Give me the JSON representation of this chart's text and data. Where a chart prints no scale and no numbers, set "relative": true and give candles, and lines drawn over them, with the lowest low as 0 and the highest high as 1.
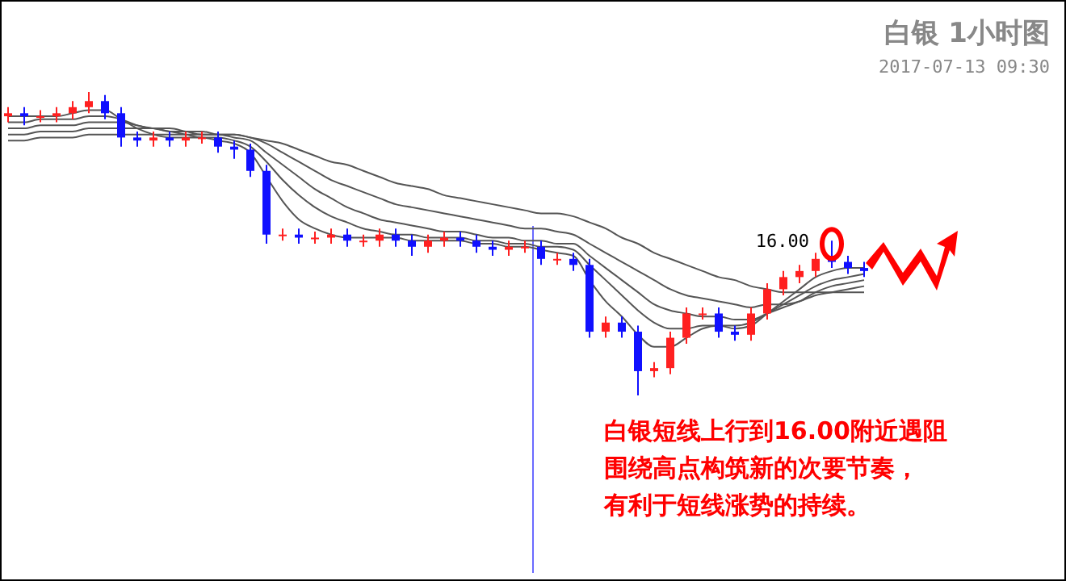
{
  "chart_data": {
    "type": "candlestick",
    "title": "白银 1小时图",
    "subtitle": "2017-07-13 09:30",
    "relative": true,
    "categories": [
      null,
      null,
      null,
      null,
      null,
      null,
      null,
      null,
      null,
      null,
      null,
      null,
      null,
      null,
      null,
      null,
      null,
      null,
      null,
      null,
      null,
      null,
      null,
      null,
      null,
      null,
      null,
      null,
      null,
      null,
      null,
      null,
      null,
      null,
      null,
      null,
      null,
      null,
      null,
      null,
      null,
      null,
      null,
      null,
      null,
      null,
      null,
      null,
      null,
      null,
      null,
      null,
      null,
      null
    ],
    "ohlc": [
      [
        0.92,
        0.95,
        0.9,
        0.93
      ],
      [
        0.93,
        0.95,
        0.89,
        0.92
      ],
      [
        0.92,
        0.94,
        0.9,
        0.92
      ],
      [
        0.92,
        0.95,
        0.9,
        0.93
      ],
      [
        0.93,
        0.97,
        0.91,
        0.95
      ],
      [
        0.95,
        1.0,
        0.93,
        0.97
      ],
      [
        0.97,
        0.99,
        0.91,
        0.93
      ],
      [
        0.93,
        0.95,
        0.82,
        0.85
      ],
      [
        0.85,
        0.87,
        0.82,
        0.84
      ],
      [
        0.84,
        0.87,
        0.82,
        0.85
      ],
      [
        0.85,
        0.87,
        0.82,
        0.84
      ],
      [
        0.84,
        0.87,
        0.82,
        0.85
      ],
      [
        0.85,
        0.87,
        0.83,
        0.85
      ],
      [
        0.85,
        0.87,
        0.8,
        0.82
      ],
      [
        0.82,
        0.84,
        0.78,
        0.81
      ],
      [
        0.81,
        0.83,
        0.72,
        0.74
      ],
      [
        0.74,
        0.76,
        0.5,
        0.53
      ],
      [
        0.53,
        0.55,
        0.51,
        0.53
      ],
      [
        0.53,
        0.55,
        0.5,
        0.52
      ],
      [
        0.52,
        0.54,
        0.5,
        0.52
      ],
      [
        0.52,
        0.55,
        0.5,
        0.53
      ],
      [
        0.53,
        0.55,
        0.49,
        0.51
      ],
      [
        0.51,
        0.53,
        0.49,
        0.51
      ],
      [
        0.51,
        0.55,
        0.49,
        0.53
      ],
      [
        0.53,
        0.55,
        0.49,
        0.51
      ],
      [
        0.51,
        0.53,
        0.46,
        0.49
      ],
      [
        0.49,
        0.53,
        0.47,
        0.51
      ],
      [
        0.51,
        0.54,
        0.49,
        0.52
      ],
      [
        0.52,
        0.54,
        0.49,
        0.51
      ],
      [
        0.51,
        0.53,
        0.47,
        0.49
      ],
      [
        0.49,
        0.51,
        0.46,
        0.48
      ],
      [
        0.48,
        0.51,
        0.46,
        0.49
      ],
      [
        0.49,
        0.51,
        0.47,
        0.49
      ],
      [
        0.49,
        0.51,
        0.43,
        0.45
      ],
      [
        0.45,
        0.47,
        0.43,
        0.45
      ],
      [
        0.45,
        0.47,
        0.41,
        0.43
      ],
      [
        0.43,
        0.45,
        0.19,
        0.21
      ],
      [
        0.21,
        0.26,
        0.19,
        0.24
      ],
      [
        0.24,
        0.26,
        0.19,
        0.21
      ],
      [
        0.21,
        0.23,
        0.0,
        0.08
      ],
      [
        0.08,
        0.11,
        0.06,
        0.09
      ],
      [
        0.09,
        0.21,
        0.07,
        0.19
      ],
      [
        0.19,
        0.29,
        0.17,
        0.27
      ],
      [
        0.27,
        0.29,
        0.25,
        0.27
      ],
      [
        0.27,
        0.29,
        0.19,
        0.21
      ],
      [
        0.21,
        0.23,
        0.18,
        0.2
      ],
      [
        0.2,
        0.29,
        0.18,
        0.27
      ],
      [
        0.27,
        0.37,
        0.25,
        0.35
      ],
      [
        0.35,
        0.41,
        0.33,
        0.39
      ],
      [
        0.39,
        0.43,
        0.37,
        0.41
      ],
      [
        0.41,
        0.47,
        0.39,
        0.45
      ],
      [
        0.45,
        0.51,
        0.42,
        0.44
      ],
      [
        0.44,
        0.46,
        0.4,
        0.42
      ],
      [
        0.42,
        0.44,
        0.39,
        0.41
      ]
    ],
    "series": [
      {
        "type": "line",
        "color": "#555555",
        "values": [
          0.92,
          0.92,
          0.92,
          0.92,
          0.93,
          0.94,
          0.94,
          0.91,
          0.88,
          0.86,
          0.85,
          0.85,
          0.85,
          0.84,
          0.83,
          0.8,
          0.72,
          0.64,
          0.58,
          0.55,
          0.53,
          0.52,
          0.52,
          0.52,
          0.52,
          0.51,
          0.51,
          0.51,
          0.51,
          0.5,
          0.5,
          0.49,
          0.49,
          0.48,
          0.47,
          0.46,
          0.38,
          0.31,
          0.26,
          0.2,
          0.16,
          0.16,
          0.19,
          0.22,
          0.23,
          0.22,
          0.23,
          0.27,
          0.31,
          0.35,
          0.39,
          0.41,
          0.42,
          0.42
        ]
      },
      {
        "type": "line",
        "color": "#555555",
        "values": [
          0.9,
          0.9,
          0.91,
          0.91,
          0.91,
          0.92,
          0.92,
          0.91,
          0.89,
          0.88,
          0.87,
          0.86,
          0.85,
          0.85,
          0.84,
          0.82,
          0.77,
          0.71,
          0.66,
          0.62,
          0.59,
          0.57,
          0.55,
          0.54,
          0.53,
          0.53,
          0.52,
          0.52,
          0.52,
          0.51,
          0.51,
          0.5,
          0.5,
          0.49,
          0.49,
          0.48,
          0.43,
          0.38,
          0.33,
          0.28,
          0.24,
          0.22,
          0.22,
          0.23,
          0.23,
          0.23,
          0.24,
          0.27,
          0.3,
          0.33,
          0.36,
          0.38,
          0.39,
          0.4
        ]
      },
      {
        "type": "line",
        "color": "#555555",
        "values": [
          0.88,
          0.88,
          0.89,
          0.89,
          0.89,
          0.9,
          0.9,
          0.9,
          0.89,
          0.88,
          0.88,
          0.87,
          0.86,
          0.86,
          0.85,
          0.84,
          0.8,
          0.76,
          0.72,
          0.68,
          0.65,
          0.62,
          0.6,
          0.58,
          0.57,
          0.56,
          0.55,
          0.54,
          0.54,
          0.53,
          0.52,
          0.52,
          0.51,
          0.51,
          0.5,
          0.5,
          0.46,
          0.42,
          0.38,
          0.34,
          0.3,
          0.28,
          0.27,
          0.26,
          0.26,
          0.25,
          0.25,
          0.27,
          0.29,
          0.31,
          0.34,
          0.36,
          0.37,
          0.38
        ]
      },
      {
        "type": "line",
        "color": "#555555",
        "values": [
          0.86,
          0.86,
          0.87,
          0.87,
          0.87,
          0.88,
          0.88,
          0.88,
          0.88,
          0.88,
          0.87,
          0.87,
          0.87,
          0.86,
          0.86,
          0.85,
          0.83,
          0.8,
          0.77,
          0.74,
          0.71,
          0.69,
          0.67,
          0.65,
          0.63,
          0.62,
          0.61,
          0.6,
          0.59,
          0.58,
          0.57,
          0.56,
          0.55,
          0.55,
          0.54,
          0.53,
          0.5,
          0.47,
          0.44,
          0.41,
          0.38,
          0.35,
          0.33,
          0.32,
          0.31,
          0.3,
          0.29,
          0.3,
          0.3,
          0.31,
          0.33,
          0.34,
          0.35,
          0.36
        ]
      },
      {
        "type": "line",
        "color": "#555555",
        "values": [
          0.84,
          0.84,
          0.85,
          0.85,
          0.85,
          0.86,
          0.86,
          0.86,
          0.86,
          0.86,
          0.86,
          0.86,
          0.86,
          0.86,
          0.86,
          0.85,
          0.84,
          0.83,
          0.81,
          0.79,
          0.77,
          0.76,
          0.74,
          0.72,
          0.7,
          0.69,
          0.68,
          0.66,
          0.65,
          0.64,
          0.63,
          0.62,
          0.61,
          0.6,
          0.6,
          0.59,
          0.57,
          0.55,
          0.52,
          0.5,
          0.47,
          0.45,
          0.43,
          0.41,
          0.39,
          0.38,
          0.36,
          0.35,
          0.34,
          0.34,
          0.34,
          0.34,
          0.34,
          0.34
        ]
      }
    ],
    "annotations": [
      "16.00",
      "白银短线上行到16.00附近遇阻",
      "围绕高点构筑新的次要节奏，",
      "有利于短线涨势的持续。"
    ]
  }
}
